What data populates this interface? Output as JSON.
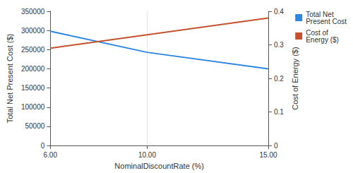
{
  "chart_data": {
    "type": "line",
    "x_label": "NominalDiscountRate (%)",
    "y_label": "Total Net Present Cost ($)",
    "y2_label": "Cost of Energy ($)",
    "x": [
      6,
      10,
      15
    ],
    "series": [
      {
        "name": "Total Net Present Cost",
        "color": "#2e86de",
        "values": [
          298000,
          243000,
          200000
        ]
      },
      {
        "name": "Cost of Energy ($)",
        "color": "#c4522f",
        "values": [
          0.29,
          0.33,
          0.38
        ],
        "axis": "y2"
      }
    ],
    "xlim": [
      6,
      15
    ],
    "xticks": [
      {
        "value": 6,
        "label": "6.00"
      },
      {
        "value": 10,
        "label": "10.00"
      },
      {
        "value": 15,
        "label": "15.00"
      }
    ],
    "ylim": [
      0,
      350000
    ],
    "yticks": [
      0,
      50000,
      100000,
      150000,
      200000,
      250000,
      300000,
      350000
    ],
    "y2lim": [
      0,
      0.4
    ],
    "y2ticks": [
      0,
      0.1,
      0.2,
      0.3,
      0.4
    ],
    "grid": "x",
    "legend": "top-right"
  }
}
